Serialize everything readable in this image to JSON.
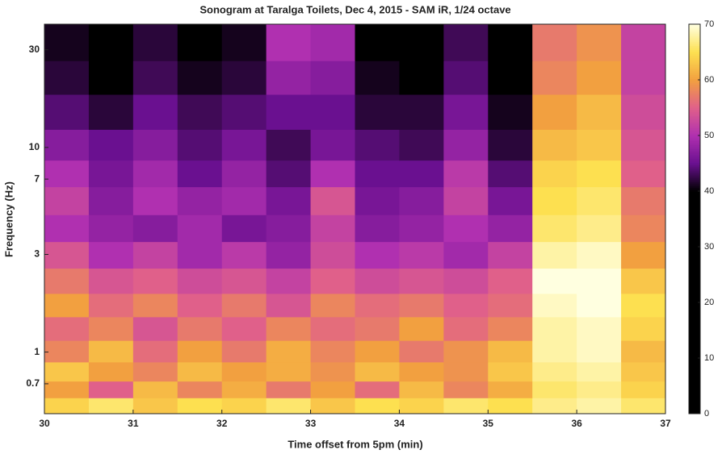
{
  "chart_data": {
    "type": "heatmap",
    "title": "Sonogram at Taralga Toilets, Dec 4, 2015 - SAM iR, 1/24 octave",
    "x_label": "Time offset from 5pm (min)",
    "y_label": "Frequency (Hz)",
    "xlim": [
      30,
      37
    ],
    "xticks": [
      30,
      31,
      32,
      33,
      34,
      35,
      36,
      37
    ],
    "ylim": [
      0.5,
      40
    ],
    "yticks": [
      0.7,
      1,
      3,
      7,
      10,
      30
    ],
    "y_scale": "log",
    "clim": [
      0,
      70
    ],
    "cticks": [
      0,
      10,
      20,
      30,
      40,
      50,
      60,
      70
    ],
    "colormap": [
      "#000000",
      "#000000",
      "#000000",
      "#000000",
      "#000000",
      "#000000",
      "#000000",
      "#000000",
      "#000000",
      "#6a1090",
      "#b030b0",
      "#e0608a",
      "#f2a040",
      "#fde050",
      "#ffffe0"
    ],
    "x": [
      30.25,
      30.75,
      31.25,
      31.75,
      32.25,
      32.75,
      33.25,
      33.75,
      34.25,
      34.75,
      35.25,
      35.75,
      36.25,
      36.75
    ],
    "y": [
      0.55,
      0.65,
      0.8,
      1,
      1.3,
      1.7,
      2.2,
      3,
      4,
      5.5,
      7.5,
      10,
      15,
      22,
      32
    ],
    "z": [
      [
        64,
        66,
        63,
        65,
        64,
        66,
        63,
        65,
        64,
        66,
        65,
        67,
        68,
        66
      ],
      [
        60,
        55,
        62,
        58,
        61,
        57,
        60,
        56,
        62,
        58,
        61,
        66,
        67,
        64
      ],
      [
        63,
        60,
        58,
        62,
        60,
        61,
        59,
        62,
        60,
        59,
        63,
        67,
        68,
        63
      ],
      [
        58,
        62,
        56,
        60,
        57,
        61,
        58,
        60,
        57,
        59,
        62,
        68,
        69,
        62
      ],
      [
        56,
        58,
        54,
        57,
        55,
        58,
        56,
        57,
        60,
        56,
        58,
        68,
        69,
        64
      ],
      [
        60,
        56,
        58,
        55,
        57,
        54,
        58,
        56,
        57,
        55,
        56,
        69,
        70,
        65
      ],
      [
        57,
        54,
        55,
        53,
        54,
        52,
        55,
        53,
        54,
        53,
        55,
        70,
        70,
        63
      ],
      [
        54,
        50,
        52,
        49,
        51,
        48,
        53,
        50,
        51,
        49,
        52,
        68,
        69,
        60
      ],
      [
        50,
        48,
        47,
        49,
        46,
        47,
        52,
        47,
        48,
        50,
        48,
        66,
        67,
        58
      ],
      [
        52,
        47,
        50,
        48,
        49,
        46,
        54,
        46,
        47,
        52,
        46,
        65,
        66,
        57
      ],
      [
        50,
        46,
        49,
        45,
        48,
        44,
        50,
        45,
        45,
        51,
        44,
        64,
        65,
        55
      ],
      [
        47,
        45,
        47,
        44,
        46,
        43,
        46,
        44,
        43,
        48,
        42,
        62,
        63,
        54
      ],
      [
        44,
        42,
        45,
        43,
        44,
        45,
        45,
        42,
        42,
        46,
        41,
        60,
        62,
        53
      ],
      [
        42,
        40,
        43,
        41,
        42,
        48,
        47,
        41,
        40,
        44,
        40,
        58,
        60,
        52
      ],
      [
        41,
        39,
        42,
        40,
        41,
        50,
        49,
        40,
        39,
        43,
        38,
        57,
        59,
        52
      ]
    ]
  }
}
